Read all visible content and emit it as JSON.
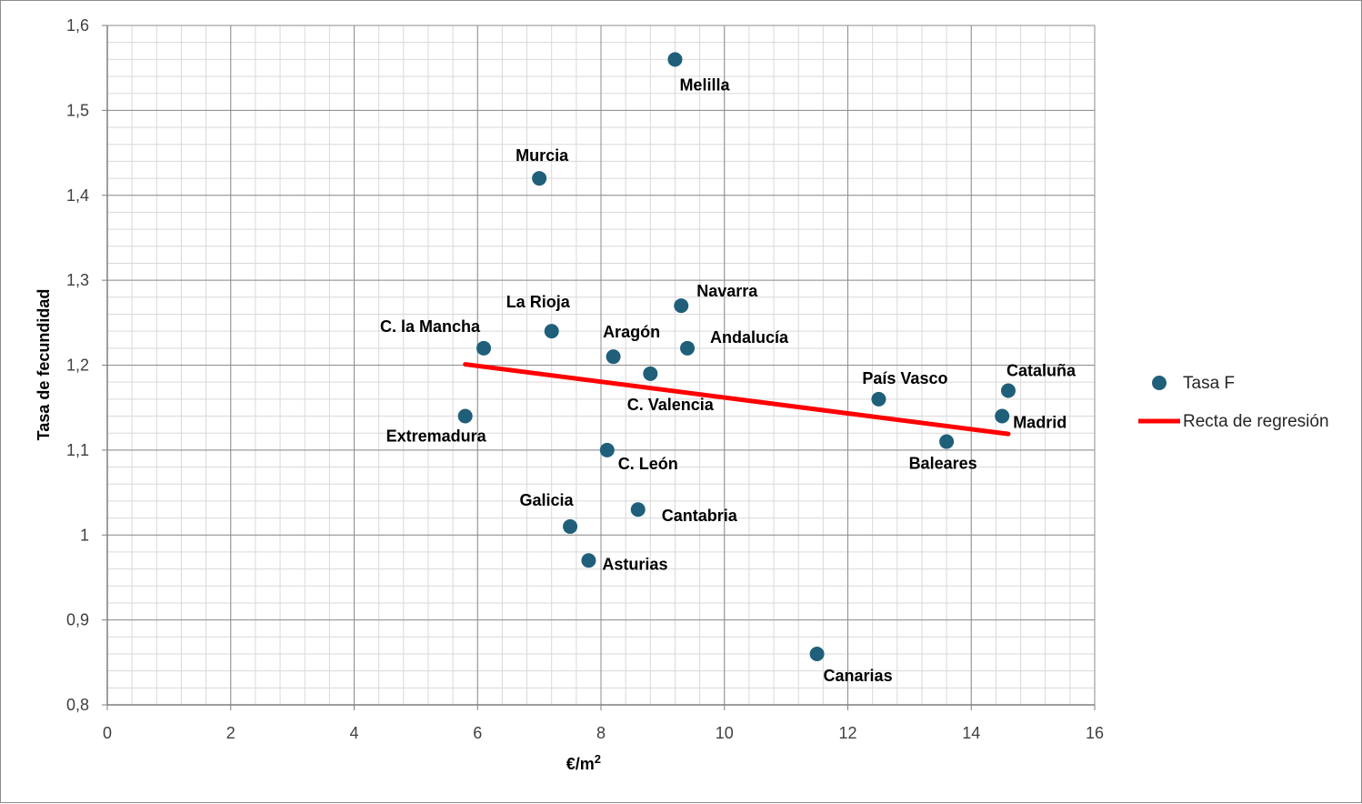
{
  "chart_data": {
    "type": "scatter",
    "title": "",
    "xlabel": "€/m",
    "xlabel_sup": "2",
    "ylabel": "Tasa de fecundidad",
    "xlim": [
      0,
      16
    ],
    "ylim": [
      0.8,
      1.6
    ],
    "x_ticks": [
      "0",
      "2",
      "4",
      "6",
      "8",
      "10",
      "12",
      "14",
      "16"
    ],
    "y_ticks": [
      "0,8",
      "0,9",
      "1",
      "1,1",
      "1,2",
      "1,3",
      "1,4",
      "1,5",
      "1,6"
    ],
    "x_tick_values": [
      0,
      2,
      4,
      6,
      8,
      10,
      12,
      14,
      16
    ],
    "y_tick_values": [
      0.8,
      0.9,
      1.0,
      1.1,
      1.2,
      1.3,
      1.4,
      1.5,
      1.6
    ],
    "grid": true,
    "minor_grid": true,
    "legend_position": "right",
    "series": [
      {
        "name": "Tasa F",
        "color": "#1f5f7a",
        "points": [
          {
            "label": "Melilla",
            "x": 9.2,
            "y": 1.56
          },
          {
            "label": "Murcia",
            "x": 7.0,
            "y": 1.42
          },
          {
            "label": "La Rioja",
            "x": 7.2,
            "y": 1.24
          },
          {
            "label": "Navarra",
            "x": 9.3,
            "y": 1.27
          },
          {
            "label": "C. la Mancha",
            "x": 6.1,
            "y": 1.22
          },
          {
            "label": "Aragón",
            "x": 8.2,
            "y": 1.21
          },
          {
            "label": "Andalucía",
            "x": 9.4,
            "y": 1.22
          },
          {
            "label": "C. Valencia",
            "x": 8.8,
            "y": 1.19
          },
          {
            "label": "País Vasco",
            "x": 12.5,
            "y": 1.16
          },
          {
            "label": "Cataluña",
            "x": 14.6,
            "y": 1.17
          },
          {
            "label": "Madrid",
            "x": 14.5,
            "y": 1.14
          },
          {
            "label": "Extremadura",
            "x": 5.8,
            "y": 1.14
          },
          {
            "label": "C. León",
            "x": 8.1,
            "y": 1.1
          },
          {
            "label": "Baleares",
            "x": 13.6,
            "y": 1.11
          },
          {
            "label": "Galicia",
            "x": 7.5,
            "y": 1.01
          },
          {
            "label": "Cantabria",
            "x": 8.6,
            "y": 1.03
          },
          {
            "label": "Asturias",
            "x": 7.8,
            "y": 0.97
          },
          {
            "label": "Canarias",
            "x": 11.5,
            "y": 0.86
          }
        ]
      },
      {
        "name": "Recta de regresión",
        "color": "#ff0000",
        "type": "line",
        "points": [
          {
            "x": 5.8,
            "y": 1.201
          },
          {
            "x": 14.6,
            "y": 1.119
          }
        ]
      }
    ]
  }
}
